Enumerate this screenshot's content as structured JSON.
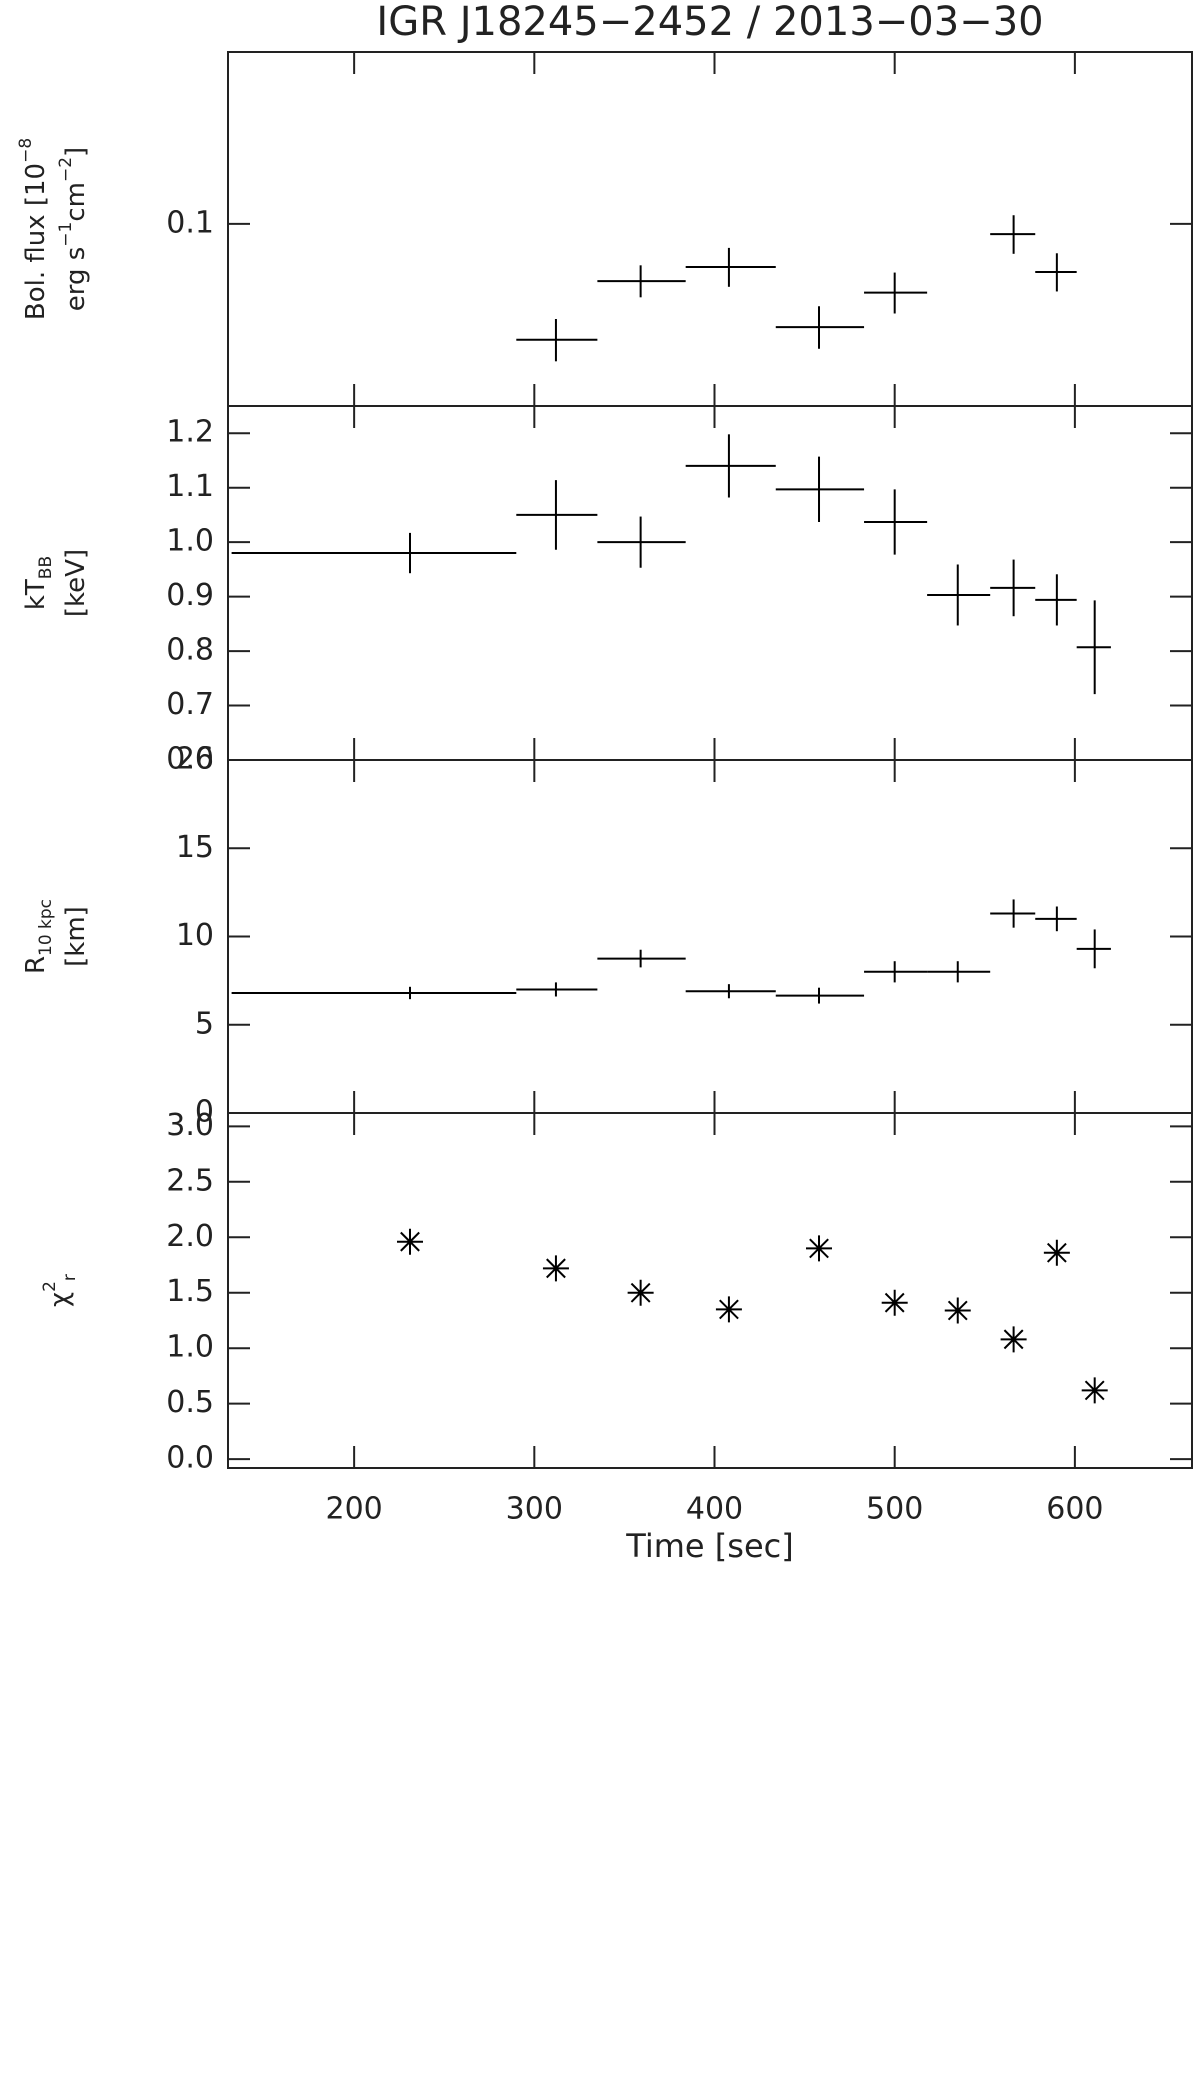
{
  "chart_data": [
    {
      "type": "errorbar",
      "title": "IGR J18245−2452 / 2013−03−30",
      "yscale": "log",
      "ylabel": [
        [
          {
            "text": "Bol. flux [10"
          },
          {
            "text": "−8",
            "baseline": "sup"
          }
        ],
        [
          {
            "text": "erg s"
          },
          {
            "text": "−1",
            "baseline": "sup"
          },
          {
            "text": "cm"
          },
          {
            "text": "−2",
            "baseline": "sup"
          },
          {
            "text": "]"
          }
        ]
      ],
      "x": [
        312,
        359,
        408,
        458,
        500,
        566,
        590
      ],
      "x_low": [
        290,
        335,
        384,
        434,
        483,
        553,
        578
      ],
      "x_high": [
        335,
        384,
        434,
        483,
        518,
        578,
        601
      ],
      "values": [
        0.0797,
        0.0894,
        0.0919,
        0.0817,
        0.0874,
        0.098,
        0.091
      ],
      "errors": [
        0.0033,
        0.0028,
        0.0035,
        0.0034,
        0.0035,
        0.0037,
        0.0034
      ],
      "ylim": [
        0.07,
        0.14
      ],
      "yticks": [
        0.1
      ],
      "xlim": [
        130,
        665
      ],
      "xticks": [
        200,
        300,
        400,
        500,
        600
      ],
      "color": "#000000"
    },
    {
      "type": "errorbar",
      "ylabel": [
        [
          {
            "text": "kT"
          },
          {
            "text": "BB",
            "baseline": "sub"
          }
        ],
        [
          {
            "text": "[keV]"
          }
        ]
      ],
      "x": [
        231,
        312,
        359,
        408,
        458,
        500,
        535,
        566,
        590,
        611
      ],
      "x_low": [
        132,
        290,
        335,
        384,
        434,
        483,
        518,
        553,
        578,
        601
      ],
      "x_high": [
        290,
        335,
        384,
        434,
        483,
        518,
        553,
        578,
        601,
        620
      ],
      "values": [
        0.98,
        1.05,
        1.0,
        1.14,
        1.097,
        1.037,
        0.903,
        0.916,
        0.894,
        0.807
      ],
      "errors": [
        0.037,
        0.064,
        0.047,
        0.058,
        0.06,
        0.06,
        0.056,
        0.052,
        0.047,
        0.086
      ],
      "ylim": [
        0.6,
        1.25
      ],
      "yticks": [
        {
          "value": 0.6,
          "label": "0.6"
        },
        {
          "value": 0.7,
          "label": "0.7"
        },
        {
          "value": 0.8,
          "label": "0.8"
        },
        {
          "value": 0.9,
          "label": "0.9"
        },
        {
          "value": 1.0,
          "label": "1.0"
        },
        {
          "value": 1.1,
          "label": "1.1"
        },
        {
          "value": 1.2,
          "label": "1.2"
        }
      ],
      "xlim": [
        130,
        665
      ],
      "xticks": [
        200,
        300,
        400,
        500,
        600
      ],
      "color": "#000000"
    },
    {
      "type": "errorbar",
      "ylabel": [
        [
          {
            "text": "R"
          },
          {
            "text": "10 kpc",
            "baseline": "sub"
          }
        ],
        [
          {
            "text": "[km]"
          }
        ]
      ],
      "x": [
        231,
        312,
        359,
        408,
        458,
        500,
        535,
        566,
        590,
        611
      ],
      "x_low": [
        132,
        290,
        335,
        384,
        434,
        483,
        518,
        553,
        578,
        601
      ],
      "x_high": [
        290,
        335,
        384,
        434,
        483,
        518,
        553,
        578,
        601,
        620
      ],
      "values": [
        6.8,
        7.0,
        8.75,
        6.9,
        6.65,
        8.0,
        8.0,
        11.3,
        11.0,
        9.3
      ],
      "errors": [
        0.35,
        0.4,
        0.5,
        0.4,
        0.45,
        0.6,
        0.6,
        0.8,
        0.7,
        1.1
      ],
      "ylim": [
        0,
        20
      ],
      "yticks": [
        0,
        5,
        10,
        15,
        20
      ],
      "xlim": [
        130,
        665
      ],
      "xticks": [
        200,
        300,
        400,
        500,
        600
      ],
      "color": "#000000"
    },
    {
      "type": "scatter",
      "marker": "asterisk",
      "ylabel": [
        [
          {
            "text": "χ"
          },
          {
            "text": "2",
            "baseline": "sup"
          },
          {
            "text": "r",
            "baseline": "sub"
          }
        ]
      ],
      "xlabel": "Time [sec]",
      "x": [
        231,
        312,
        359,
        408,
        458,
        500,
        535,
        566,
        590,
        611
      ],
      "values": [
        1.96,
        1.72,
        1.5,
        1.35,
        1.9,
        1.41,
        1.34,
        1.08,
        1.86,
        0.62
      ],
      "ylim": [
        -0.08,
        3.12
      ],
      "yticks": [
        {
          "value": 0,
          "label": "0.0"
        },
        {
          "value": 0.5,
          "label": "0.5"
        },
        {
          "value": 1,
          "label": "1.0"
        },
        {
          "value": 1.5,
          "label": "1.5"
        },
        {
          "value": 2,
          "label": "2.0"
        },
        {
          "value": 2.5,
          "label": "2.5"
        },
        {
          "value": 3,
          "label": "3.0"
        }
      ],
      "xlim": [
        130,
        665
      ],
      "xticks": [
        200,
        300,
        400,
        500,
        600
      ],
      "color": "#000000"
    }
  ]
}
